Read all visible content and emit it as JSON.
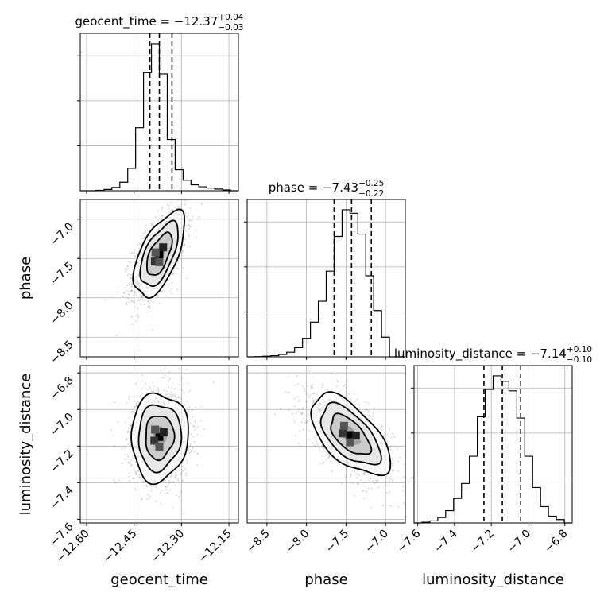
{
  "chart_data": {
    "type": "corner",
    "grid": true,
    "parameters": [
      {
        "name": "geocent_time",
        "median": -12.37,
        "plus": 0.04,
        "minus": 0.03,
        "title_prefix": "geocent_time = ",
        "title_value": "−12.37",
        "title_plus": "+0.04",
        "title_minus": "−0.03",
        "axis_label": "geocent_time",
        "range": [
          -12.62,
          -12.12
        ],
        "ticks": [
          -12.6,
          -12.45,
          -12.3,
          -12.15
        ],
        "tick_labels": [
          "−12.60",
          "−12.45",
          "−12.30",
          "−12.15"
        ],
        "quantiles": [
          -12.4,
          -12.37,
          -12.33
        ],
        "hist_edges": [
          -12.62,
          -12.595,
          -12.57,
          -12.545,
          -12.52,
          -12.495,
          -12.47,
          -12.445,
          -12.42,
          -12.395,
          -12.37,
          -12.345,
          -12.32,
          -12.295,
          -12.27,
          -12.245,
          -12.22,
          -12.195,
          -12.17,
          -12.145,
          -12.12
        ],
        "hist_counts": [
          0,
          0,
          0.3,
          1,
          2.5,
          6.5,
          17,
          48,
          90,
          112,
          89,
          39,
          16,
          8,
          4.5,
          3,
          2,
          1.3,
          0.6,
          0
        ]
      },
      {
        "name": "phase",
        "median": -7.43,
        "plus": 0.25,
        "minus": 0.22,
        "title_prefix": "phase = ",
        "title_value": "−7.43",
        "title_plus": "+0.25",
        "title_minus": "−0.22",
        "axis_label": "phase",
        "range": [
          -8.75,
          -6.75
        ],
        "ticks": [
          -8.5,
          -8.0,
          -7.5,
          -7.0
        ],
        "tick_labels": [
          "−8.5",
          "−8.0",
          "−7.5",
          "−7.0"
        ],
        "quantiles": [
          -7.65,
          -7.43,
          -7.18
        ],
        "hist_edges": [
          -8.75,
          -8.65,
          -8.55,
          -8.45,
          -8.35,
          -8.25,
          -8.15,
          -8.05,
          -7.95,
          -7.85,
          -7.75,
          -7.65,
          -7.55,
          -7.45,
          -7.35,
          -7.25,
          -7.15,
          -7.05,
          -6.95,
          -6.85,
          -6.75
        ],
        "hist_counts": [
          0,
          0.2,
          0.5,
          1,
          2,
          4,
          8,
          16,
          30,
          48,
          74,
          104,
          127,
          124,
          106,
          70,
          40,
          17,
          0,
          0
        ]
      },
      {
        "name": "luminosity_distance",
        "median": -7.14,
        "plus": 0.1,
        "minus": 0.1,
        "title_prefix": "luminosity_distance = ",
        "title_value": "−7.14",
        "title_plus": "+0.10",
        "title_minus": "−0.10",
        "axis_label": "luminosity_distance",
        "range": [
          -7.62,
          -6.76
        ],
        "ticks": [
          -7.6,
          -7.4,
          -7.2,
          -7.0,
          -6.8
        ],
        "tick_labels": [
          "−7.6",
          "−7.4",
          "−7.2",
          "−7.0",
          "−6.8"
        ],
        "quantiles": [
          -7.24,
          -7.14,
          -7.04
        ],
        "hist_edges": [
          -7.62,
          -7.577,
          -7.534,
          -7.491,
          -7.448,
          -7.405,
          -7.362,
          -7.319,
          -7.276,
          -7.233,
          -7.19,
          -7.147,
          -7.104,
          -7.061,
          -7.018,
          -6.975,
          -6.932,
          -6.889,
          -6.846,
          -6.803,
          -6.76
        ],
        "hist_counts": [
          0,
          0.5,
          1.5,
          4,
          9,
          18,
          29,
          49,
          78,
          98,
          108,
          104,
          97,
          77,
          49,
          26,
          12,
          5,
          2.5,
          0
        ]
      }
    ],
    "pairs": [
      {
        "x": "geocent_time",
        "y": "phase",
        "center": [
          -12.37,
          -7.45
        ],
        "sd": [
          0.04,
          0.27
        ],
        "rho": 0.6,
        "contour_levels_sigma": [
          0.5,
          1.0,
          1.5,
          2.0
        ]
      },
      {
        "x": "geocent_time",
        "y": "luminosity_distance",
        "center": [
          -12.37,
          -7.15
        ],
        "sd": [
          0.045,
          0.12
        ],
        "rho": 0.05,
        "contour_levels_sigma": [
          0.5,
          1.0,
          1.5,
          2.0
        ]
      },
      {
        "x": "phase",
        "y": "luminosity_distance",
        "center": [
          -7.45,
          -7.14
        ],
        "sd": [
          0.25,
          0.11
        ],
        "rho": -0.6,
        "contour_levels_sigma": [
          0.5,
          1.0,
          1.5,
          2.0
        ]
      }
    ]
  }
}
